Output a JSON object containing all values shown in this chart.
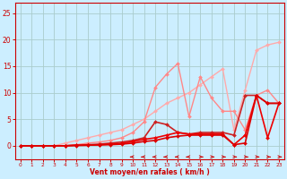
{
  "xlabel": "Vent moyen/en rafales ( km/h )",
  "bg_color": "#cceeff",
  "grid_color": "#aacccc",
  "x_ticks": [
    0,
    1,
    2,
    3,
    4,
    5,
    6,
    7,
    8,
    9,
    10,
    11,
    12,
    13,
    14,
    15,
    16,
    17,
    18,
    19,
    20,
    21,
    22,
    23
  ],
  "ylim": [
    -2.5,
    27
  ],
  "xlim": [
    -0.5,
    23.5
  ],
  "y_ticks": [
    0,
    5,
    10,
    15,
    20,
    25
  ],
  "lines": [
    {
      "x": [
        0,
        1,
        2,
        3,
        4,
        5,
        6,
        7,
        8,
        9,
        10,
        11,
        12,
        13,
        14,
        15,
        16,
        17,
        18,
        19,
        20,
        21,
        22,
        23
      ],
      "y": [
        0,
        0,
        0,
        0,
        0.5,
        1.0,
        1.5,
        2.0,
        2.5,
        3.0,
        4.0,
        5.0,
        6.5,
        8.0,
        9.0,
        10.0,
        11.5,
        13.0,
        14.5,
        3.0,
        10.5,
        18.0,
        19.0,
        19.5
      ],
      "color": "#ffaaaa",
      "lw": 1.0,
      "marker": "D",
      "ms": 2.0
    },
    {
      "x": [
        0,
        1,
        2,
        3,
        4,
        5,
        6,
        7,
        8,
        9,
        10,
        11,
        12,
        13,
        14,
        15,
        16,
        17,
        18,
        19,
        20,
        21,
        22,
        23
      ],
      "y": [
        0,
        0,
        0,
        0,
        0,
        0.2,
        0.5,
        0.7,
        1.0,
        1.5,
        2.5,
        4.5,
        11.0,
        13.5,
        15.5,
        5.5,
        13.0,
        9.0,
        6.5,
        6.5,
        3.0,
        9.5,
        10.5,
        8.0
      ],
      "color": "#ff8888",
      "lw": 1.0,
      "marker": "D",
      "ms": 2.0
    },
    {
      "x": [
        0,
        1,
        2,
        3,
        4,
        5,
        6,
        7,
        8,
        9,
        10,
        11,
        12,
        13,
        14,
        15,
        16,
        17,
        18,
        19,
        20,
        21,
        22,
        23
      ],
      "y": [
        0,
        0,
        0,
        0,
        0,
        0.1,
        0.2,
        0.3,
        0.5,
        0.7,
        1.0,
        1.5,
        4.5,
        4.0,
        2.5,
        2.2,
        2.5,
        2.5,
        2.5,
        2.0,
        9.5,
        9.5,
        8.0,
        8.0
      ],
      "color": "#cc2222",
      "lw": 1.2,
      "marker": "D",
      "ms": 2.0
    },
    {
      "x": [
        0,
        1,
        2,
        3,
        4,
        5,
        6,
        7,
        8,
        9,
        10,
        11,
        12,
        13,
        14,
        15,
        16,
        17,
        18,
        19,
        20,
        21,
        22,
        23
      ],
      "y": [
        0,
        0,
        0,
        0,
        0,
        0.1,
        0.1,
        0.2,
        0.3,
        0.4,
        0.8,
        1.2,
        1.5,
        2.0,
        2.5,
        2.2,
        2.2,
        2.2,
        2.2,
        0.2,
        2.0,
        9.5,
        1.5,
        8.0
      ],
      "color": "#ee0000",
      "lw": 1.2,
      "marker": "D",
      "ms": 2.0
    },
    {
      "x": [
        0,
        1,
        2,
        3,
        4,
        5,
        6,
        7,
        8,
        9,
        10,
        11,
        12,
        13,
        14,
        15,
        16,
        17,
        18,
        19,
        20,
        21,
        22,
        23
      ],
      "y": [
        0,
        0,
        0,
        0,
        0,
        0.05,
        0.1,
        0.15,
        0.2,
        0.3,
        0.5,
        0.8,
        1.0,
        1.5,
        1.8,
        2.0,
        2.0,
        2.0,
        2.0,
        0.2,
        0.5,
        9.5,
        8.0,
        8.0
      ],
      "color": "#dd0000",
      "lw": 1.2,
      "marker": "D",
      "ms": 2.0
    }
  ],
  "wind_arrows": [
    {
      "x": 10,
      "dir": "left"
    },
    {
      "x": 11,
      "dir": "left"
    },
    {
      "x": 12,
      "dir": "left"
    },
    {
      "x": 13,
      "dir": "left"
    },
    {
      "x": 14,
      "dir": "left"
    },
    {
      "x": 15,
      "dir": "left"
    },
    {
      "x": 16,
      "dir": "right"
    },
    {
      "x": 17,
      "dir": "right"
    },
    {
      "x": 18,
      "dir": "right"
    },
    {
      "x": 19,
      "dir": "right"
    },
    {
      "x": 20,
      "dir": "right"
    },
    {
      "x": 21,
      "dir": "right"
    },
    {
      "x": 22,
      "dir": "right"
    },
    {
      "x": 23,
      "dir": "right"
    }
  ]
}
